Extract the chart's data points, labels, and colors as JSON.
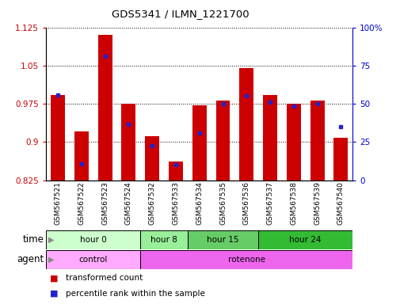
{
  "title": "GDS5341 / ILMN_1221700",
  "samples": [
    "GSM567521",
    "GSM567522",
    "GSM567523",
    "GSM567524",
    "GSM567532",
    "GSM567533",
    "GSM567534",
    "GSM567535",
    "GSM567536",
    "GSM567537",
    "GSM567538",
    "GSM567539",
    "GSM567540"
  ],
  "red_values": [
    0.993,
    0.921,
    1.11,
    0.975,
    0.912,
    0.862,
    0.972,
    0.982,
    1.045,
    0.992,
    0.975,
    0.981,
    0.908
  ],
  "blue_values": [
    0.992,
    0.857,
    1.068,
    0.935,
    0.893,
    0.855,
    0.918,
    0.975,
    0.99,
    0.978,
    0.971,
    0.975,
    0.93
  ],
  "ylim_left": [
    0.825,
    1.125
  ],
  "ylim_right": [
    0,
    100
  ],
  "yticks_left": [
    0.825,
    0.9,
    0.975,
    1.05,
    1.125
  ],
  "yticks_right": [
    0,
    25,
    50,
    75,
    100
  ],
  "ytick_labels_left": [
    "0.825",
    "0.9",
    "0.975",
    "1.05",
    "1.125"
  ],
  "ytick_labels_right": [
    "0",
    "25",
    "50",
    "75",
    "100%"
  ],
  "bar_color": "#cc0000",
  "dot_color": "#2222cc",
  "time_groups": [
    {
      "label": "hour 0",
      "start": 0,
      "end": 4,
      "color": "#ccffcc"
    },
    {
      "label": "hour 8",
      "start": 4,
      "end": 6,
      "color": "#99ee99"
    },
    {
      "label": "hour 15",
      "start": 6,
      "end": 9,
      "color": "#66cc66"
    },
    {
      "label": "hour 24",
      "start": 9,
      "end": 13,
      "color": "#33bb33"
    }
  ],
  "agent_groups": [
    {
      "label": "control",
      "start": 0,
      "end": 4,
      "color": "#ffaaff"
    },
    {
      "label": "rotenone",
      "start": 4,
      "end": 13,
      "color": "#ee66ee"
    }
  ],
  "legend_items": [
    {
      "color": "#cc0000",
      "label": "transformed count"
    },
    {
      "color": "#2222cc",
      "label": "percentile rank within the sample"
    }
  ],
  "time_row_label": "time",
  "agent_row_label": "agent",
  "bar_bottom": 0.825,
  "bar_width": 0.6,
  "background_color": "#ffffff",
  "tick_label_color_left": "#cc0000",
  "tick_label_color_right": "#0000cc"
}
